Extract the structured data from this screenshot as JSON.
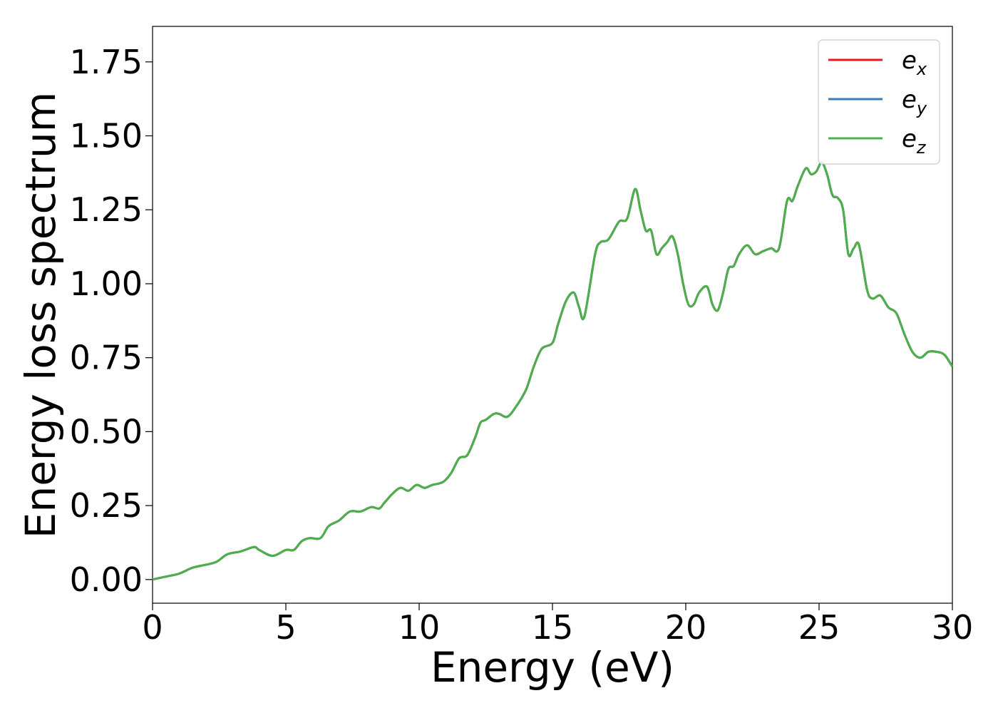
{
  "chart_data": {
    "type": "line",
    "title": "",
    "xlabel": "Energy (eV)",
    "ylabel": "Energy loss spectrum",
    "xlim": [
      0,
      30
    ],
    "ylim": [
      -0.08,
      1.87
    ],
    "xticks": [
      0,
      5,
      10,
      15,
      20,
      25,
      30
    ],
    "xtick_labels": [
      "0",
      "5",
      "10",
      "15",
      "20",
      "25",
      "30"
    ],
    "yticks": [
      0.0,
      0.25,
      0.5,
      0.75,
      1.0,
      1.25,
      1.5,
      1.75
    ],
    "ytick_labels": [
      "0.00",
      "0.25",
      "0.50",
      "0.75",
      "1.00",
      "1.25",
      "1.50",
      "1.75"
    ],
    "grid": false,
    "legend_position": "top-right",
    "x": [
      0,
      0.5,
      1.0,
      1.5,
      2.0,
      2.4,
      2.8,
      3.3,
      3.8,
      4.0,
      4.5,
      5.0,
      5.3,
      5.6,
      5.9,
      6.3,
      6.6,
      7.0,
      7.4,
      7.8,
      8.2,
      8.5,
      8.7,
      9.0,
      9.3,
      9.6,
      9.9,
      10.2,
      10.5,
      10.9,
      11.2,
      11.5,
      11.8,
      12.1,
      12.3,
      12.5,
      12.8,
      13.0,
      13.3,
      13.6,
      14.0,
      14.3,
      14.6,
      15.0,
      15.2,
      15.5,
      15.8,
      16.0,
      16.2,
      16.6,
      16.8,
      17.1,
      17.5,
      17.8,
      18.1,
      18.3,
      18.5,
      18.7,
      18.9,
      19.1,
      19.3,
      19.5,
      19.7,
      19.9,
      20.1,
      20.3,
      20.5,
      20.8,
      21.0,
      21.2,
      21.4,
      21.6,
      21.8,
      22.0,
      22.3,
      22.6,
      22.9,
      23.2,
      23.5,
      23.8,
      24.0,
      24.2,
      24.5,
      24.7,
      24.9,
      25.1,
      25.3,
      25.5,
      25.7,
      25.9,
      26.1,
      26.3,
      26.5,
      26.8,
      27.0,
      27.3,
      27.6,
      27.9,
      28.2,
      28.5,
      28.8,
      29.1,
      29.4,
      29.7,
      30.0
    ],
    "series": [
      {
        "name": "e_x",
        "color": "#e41a1c"
      },
      {
        "name": "e_y",
        "color": "#377eb8"
      },
      {
        "name": "e_z",
        "color": "#4daf4a",
        "y": [
          0.0,
          0.01,
          0.02,
          0.04,
          0.05,
          0.06,
          0.085,
          0.095,
          0.11,
          0.1,
          0.08,
          0.1,
          0.1,
          0.13,
          0.14,
          0.14,
          0.18,
          0.2,
          0.23,
          0.23,
          0.245,
          0.24,
          0.26,
          0.29,
          0.31,
          0.3,
          0.32,
          0.31,
          0.32,
          0.33,
          0.36,
          0.41,
          0.42,
          0.48,
          0.53,
          0.54,
          0.56,
          0.56,
          0.55,
          0.58,
          0.64,
          0.72,
          0.78,
          0.8,
          0.86,
          0.94,
          0.97,
          0.92,
          0.89,
          1.1,
          1.14,
          1.15,
          1.21,
          1.22,
          1.32,
          1.25,
          1.18,
          1.18,
          1.1,
          1.12,
          1.14,
          1.16,
          1.1,
          1.0,
          0.93,
          0.93,
          0.97,
          0.99,
          0.93,
          0.91,
          0.97,
          1.05,
          1.06,
          1.1,
          1.13,
          1.1,
          1.11,
          1.12,
          1.12,
          1.28,
          1.28,
          1.33,
          1.39,
          1.37,
          1.38,
          1.41,
          1.37,
          1.3,
          1.29,
          1.25,
          1.1,
          1.12,
          1.13,
          0.98,
          0.95,
          0.96,
          0.92,
          0.9,
          0.83,
          0.77,
          0.75,
          0.77,
          0.77,
          0.76,
          0.72
        ]
      }
    ],
    "legend": [
      {
        "base": "e",
        "sub": "x",
        "color": "#e41a1c"
      },
      {
        "base": "e",
        "sub": "y",
        "color": "#377eb8"
      },
      {
        "base": "e",
        "sub": "z",
        "color": "#4daf4a"
      }
    ]
  }
}
